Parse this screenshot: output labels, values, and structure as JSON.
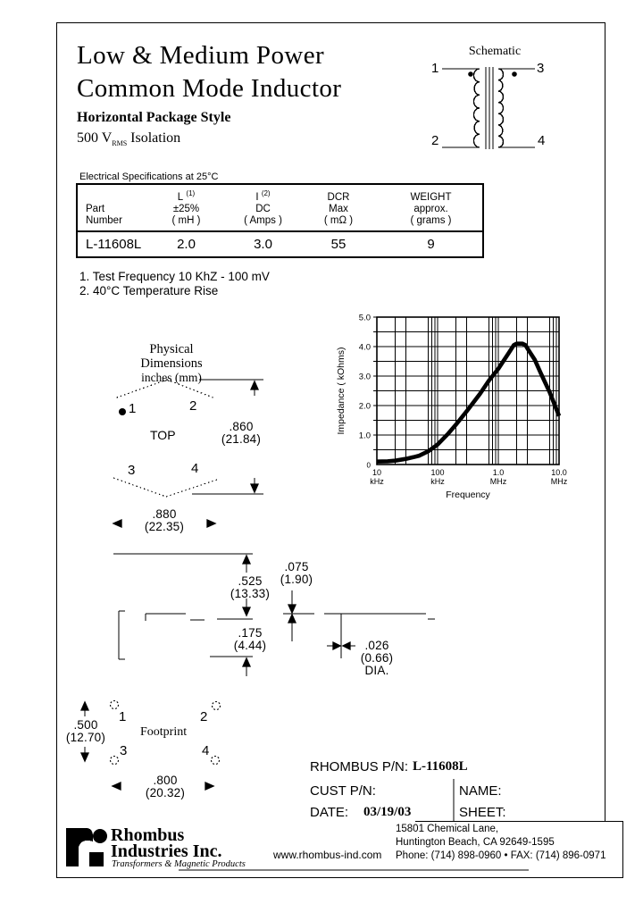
{
  "doc": {
    "title_line1": "Low & Medium Power",
    "title_line2": "Common Mode Inductor",
    "package_style": "Horizontal Package Style",
    "isolation_prefix": "500 V",
    "isolation_subscript": "RMS",
    "isolation_suffix": " Isolation"
  },
  "schematic": {
    "title": "Schematic",
    "pin1": "1",
    "pin2": "2",
    "pin3": "3",
    "pin4": "4"
  },
  "spec_table": {
    "caption": "Electrical Specifications at 25°C",
    "headers": {
      "part": {
        "line1": "Part",
        "line2": "Number"
      },
      "inductance": {
        "symbol": "L",
        "sup": "(1)",
        "line2": "±25%",
        "line3": "( mH )"
      },
      "current": {
        "symbol": "I",
        "sup": "(2)",
        "line2": "DC",
        "line3": "( Amps )"
      },
      "dcr": {
        "line1": "DCR",
        "line2": "Max",
        "line3": "( mΩ )"
      },
      "weight": {
        "line1": "WEIGHT",
        "line2": "approx.",
        "line3": "( grams )"
      }
    },
    "row": {
      "part_number": "L-11608L",
      "inductance_mh": "2.0",
      "current_amps": "3.0",
      "dcr_max_mohm": "55",
      "weight_grams": "9"
    }
  },
  "notes": {
    "note1": "1.  Test Frequency 10 KhZ - 100 mV",
    "note2": "2.  40°C Temperature Rise"
  },
  "chart_data": {
    "type": "line",
    "title": "",
    "xlabel": "Frequency",
    "ylabel": "Impedance ( kOhms)",
    "x_scale": "log",
    "grid": true,
    "x_ticks": [
      {
        "khz": 10,
        "line1": "10",
        "line2": "kHz"
      },
      {
        "khz": 100,
        "line1": "100",
        "line2": "kHz"
      },
      {
        "khz": 1000,
        "line1": "1.0",
        "line2": "MHz"
      },
      {
        "khz": 10000,
        "line1": "10.0",
        "line2": "MHz"
      }
    ],
    "x_minor_multiples": [
      2,
      3,
      7,
      8,
      9
    ],
    "ylim": [
      0,
      5
    ],
    "y_tick_labels": [
      "0",
      "1.0",
      "2.0",
      "3.0",
      "4.0",
      "5.0"
    ],
    "y_minor_step": 0.5,
    "line_color": "#000000",
    "series": [
      {
        "name": "Impedance",
        "points_khz_kohm": [
          [
            10,
            0.1
          ],
          [
            15,
            0.11
          ],
          [
            20,
            0.13
          ],
          [
            30,
            0.19
          ],
          [
            40,
            0.25
          ],
          [
            50,
            0.3
          ],
          [
            70,
            0.45
          ],
          [
            100,
            0.68
          ],
          [
            150,
            1.05
          ],
          [
            200,
            1.35
          ],
          [
            300,
            1.8
          ],
          [
            500,
            2.4
          ],
          [
            700,
            2.85
          ],
          [
            1000,
            3.25
          ],
          [
            1500,
            3.8
          ],
          [
            1800,
            4.05
          ],
          [
            2000,
            4.1
          ],
          [
            2500,
            4.1
          ],
          [
            2800,
            4.05
          ],
          [
            3000,
            3.95
          ],
          [
            4000,
            3.55
          ],
          [
            5000,
            3.1
          ],
          [
            7000,
            2.45
          ],
          [
            10000,
            1.65
          ]
        ]
      }
    ]
  },
  "physical": {
    "title_line1": "Physical Dimensions",
    "title_line2": "inches (mm)",
    "top_view_label": "TOP",
    "footprint_label": "Footprint",
    "pin1": "1",
    "pin2": "2",
    "pin3": "3",
    "pin4": "4",
    "dim_body_length": {
      "inches": ".860",
      "mm": "(21.84)"
    },
    "dim_body_width": {
      "inches": ".880",
      "mm": "(22.35)"
    },
    "dim_body_height": {
      "inches": ".525",
      "mm": "(13.33)"
    },
    "dim_standoff": {
      "inches": ".075",
      "mm": "(1.90)"
    },
    "dim_lead_length": {
      "inches": ".175",
      "mm": "(4.44)"
    },
    "dim_lead_dia": {
      "inches": ".026",
      "mm": "(0.66)",
      "suffix": "DIA."
    },
    "dim_fp_pitch_y": {
      "inches": ".500",
      "mm": "(12.70)"
    },
    "dim_fp_pitch_x": {
      "inches": ".800",
      "mm": "(20.32)"
    }
  },
  "title_block": {
    "rhombus_pn_label": "RHOMBUS P/N:",
    "rhombus_pn_value": "L-11608L",
    "cust_pn_label": "CUST P/N:",
    "name_label": "NAME:",
    "date_label": "DATE:",
    "date_value": "03/19/03",
    "sheet_label": "SHEET:"
  },
  "footer": {
    "company_name_line1": "Rhombus",
    "company_name_line2": "Industries Inc.",
    "tagline": "Transformers & Magnetic Products",
    "website": "www.rhombus-ind.com",
    "address_line1": "15801 Chemical Lane,",
    "address_line2": "Huntington Beach, CA 92649-1595",
    "phone_fax": "Phone: (714) 898-0960 • FAX: (714) 896-0971"
  }
}
